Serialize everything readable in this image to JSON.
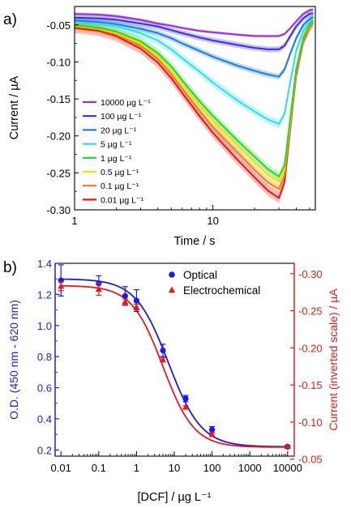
{
  "panels": {
    "a": {
      "letter": "a)"
    },
    "b": {
      "letter": "b)"
    }
  },
  "chart_data": [
    {
      "type": "line",
      "xlabel": "Time / s",
      "ylabel": "Current / µA",
      "xscale": "log",
      "xlim": [
        1,
        55
      ],
      "ylim": [
        -0.3,
        -0.025
      ],
      "xticks": [
        {
          "value": 1,
          "label": "1"
        },
        {
          "value": 10,
          "label": "10"
        }
      ],
      "yticks": [
        {
          "value": -0.05,
          "label": "-0.05"
        },
        {
          "value": -0.1,
          "label": "-0.10"
        },
        {
          "value": -0.15,
          "label": "-0.15"
        },
        {
          "value": -0.2,
          "label": "-0.20"
        },
        {
          "value": -0.25,
          "label": "-0.25"
        },
        {
          "value": -0.3,
          "label": "-0.30"
        }
      ],
      "legend_position": "bottom-left",
      "x": [
        1,
        1.5,
        2,
        3,
        4,
        5,
        6,
        8,
        10,
        15,
        20,
        25,
        30,
        33,
        36,
        40,
        45,
        50,
        53
      ],
      "series": [
        {
          "name": "10000 µg L⁻¹",
          "color": "#9b30d9",
          "band": 0.002,
          "values": [
            -0.035,
            -0.036,
            -0.038,
            -0.043,
            -0.048,
            -0.051,
            -0.054,
            -0.058,
            -0.06,
            -0.063,
            -0.065,
            -0.065,
            -0.065,
            -0.062,
            -0.055,
            -0.045,
            -0.035,
            -0.03,
            -0.029
          ]
        },
        {
          "name": "100 µg L⁻¹",
          "color": "#3a2ee0",
          "band": 0.004,
          "values": [
            -0.04,
            -0.041,
            -0.043,
            -0.048,
            -0.052,
            -0.057,
            -0.061,
            -0.067,
            -0.071,
            -0.077,
            -0.081,
            -0.083,
            -0.083,
            -0.078,
            -0.066,
            -0.052,
            -0.041,
            -0.035,
            -0.034
          ]
        },
        {
          "name": "20 µg L⁻¹",
          "color": "#1a7ee0",
          "band": 0.004,
          "values": [
            -0.044,
            -0.046,
            -0.049,
            -0.055,
            -0.061,
            -0.068,
            -0.075,
            -0.085,
            -0.093,
            -0.105,
            -0.112,
            -0.117,
            -0.12,
            -0.11,
            -0.09,
            -0.068,
            -0.05,
            -0.042,
            -0.039
          ]
        },
        {
          "name": "5 µg L⁻¹",
          "color": "#35dbe6",
          "band": 0.006,
          "values": [
            -0.046,
            -0.049,
            -0.052,
            -0.061,
            -0.071,
            -0.083,
            -0.095,
            -0.113,
            -0.128,
            -0.152,
            -0.167,
            -0.178,
            -0.184,
            -0.17,
            -0.13,
            -0.085,
            -0.058,
            -0.046,
            -0.041
          ]
        },
        {
          "name": "1 µg L⁻¹",
          "color": "#28d428",
          "band": 0.006,
          "values": [
            -0.05,
            -0.054,
            -0.059,
            -0.072,
            -0.088,
            -0.106,
            -0.125,
            -0.153,
            -0.173,
            -0.206,
            -0.228,
            -0.245,
            -0.255,
            -0.24,
            -0.18,
            -0.11,
            -0.068,
            -0.05,
            -0.044
          ]
        },
        {
          "name": "0.5 µg L⁻¹",
          "color": "#eee014",
          "band": 0.006,
          "values": [
            -0.051,
            -0.055,
            -0.061,
            -0.075,
            -0.092,
            -0.111,
            -0.13,
            -0.159,
            -0.18,
            -0.213,
            -0.236,
            -0.253,
            -0.262,
            -0.245,
            -0.185,
            -0.112,
            -0.069,
            -0.051,
            -0.045
          ]
        },
        {
          "name": "0.1 µg L⁻¹",
          "color": "#f07c1c",
          "band": 0.006,
          "values": [
            -0.052,
            -0.056,
            -0.063,
            -0.078,
            -0.096,
            -0.116,
            -0.136,
            -0.166,
            -0.188,
            -0.222,
            -0.246,
            -0.263,
            -0.272,
            -0.253,
            -0.19,
            -0.115,
            -0.07,
            -0.052,
            -0.045
          ]
        },
        {
          "name": "0.01 µg L⁻¹",
          "color": "#e81616",
          "band": 0.007,
          "values": [
            -0.054,
            -0.058,
            -0.065,
            -0.082,
            -0.101,
            -0.122,
            -0.142,
            -0.173,
            -0.196,
            -0.232,
            -0.256,
            -0.274,
            -0.284,
            -0.262,
            -0.195,
            -0.118,
            -0.072,
            -0.053,
            -0.046
          ]
        }
      ]
    },
    {
      "type": "scatter",
      "xlabel": "[DCF] / µg L⁻¹",
      "ylabel": "O.D. (450 nm - 620 nm)",
      "y2label": "Current (inverted scale) / µA",
      "xscale": "log",
      "xlim": [
        0.007,
        15000
      ],
      "ylim": [
        0.16,
        1.4
      ],
      "y2lim": [
        -0.054,
        -0.314
      ],
      "xticks": [
        {
          "value": 0.01,
          "label": "0.01"
        },
        {
          "value": 0.1,
          "label": "0.1"
        },
        {
          "value": 1,
          "label": "1"
        },
        {
          "value": 10,
          "label": "10"
        },
        {
          "value": 100,
          "label": "100"
        },
        {
          "value": 1000,
          "label": "1000"
        },
        {
          "value": 10000,
          "label": "10000"
        }
      ],
      "yticks": [
        {
          "value": 0.2,
          "label": "0.2"
        },
        {
          "value": 0.4,
          "label": "0.4"
        },
        {
          "value": 0.6,
          "label": "0.6"
        },
        {
          "value": 0.8,
          "label": "0.8"
        },
        {
          "value": 1.0,
          "label": "1.0"
        },
        {
          "value": 1.2,
          "label": "1.2"
        },
        {
          "value": 1.4,
          "label": "1.4"
        }
      ],
      "y2ticks": [
        {
          "value": -0.05,
          "label": "-0.05"
        },
        {
          "value": -0.1,
          "label": "-0.10"
        },
        {
          "value": -0.15,
          "label": "-0.15"
        },
        {
          "value": -0.2,
          "label": "-0.20"
        },
        {
          "value": -0.25,
          "label": "-0.25"
        },
        {
          "value": -0.3,
          "label": "-0.30"
        }
      ],
      "legend_position": "top-right",
      "axis_colors": {
        "left": "#1a1ae6",
        "right": "#e61a1a"
      },
      "series": [
        {
          "name": "Optical",
          "axis": "left",
          "marker": "circle",
          "color": "#1a1ae6",
          "points": [
            {
              "x": 0.01,
              "y": 1.29,
              "err": 0.1
            },
            {
              "x": 0.1,
              "y": 1.27,
              "err": 0.05
            },
            {
              "x": 0.5,
              "y": 1.19,
              "err": 0.06
            },
            {
              "x": 1,
              "y": 1.16,
              "err": 0.07
            },
            {
              "x": 5,
              "y": 0.84,
              "err": 0.04
            },
            {
              "x": 20,
              "y": 0.53,
              "err": 0.02
            },
            {
              "x": 100,
              "y": 0.33,
              "err": 0.02
            },
            {
              "x": 10000,
              "y": 0.22,
              "err": 0.01
            }
          ],
          "fit": {
            "top": 1.3,
            "bottom": 0.22,
            "ec50": 7,
            "hill": 1.0
          }
        },
        {
          "name": "Electrochemical",
          "axis": "right",
          "marker": "triangle",
          "color": "#e61a1a",
          "points": [
            {
              "x": 0.01,
              "y": -0.283,
              "err": 0.006
            },
            {
              "x": 0.1,
              "y": -0.279,
              "err": 0.008
            },
            {
              "x": 0.5,
              "y": -0.262,
              "err": 0.004
            },
            {
              "x": 1,
              "y": -0.255,
              "err": 0.004
            },
            {
              "x": 5,
              "y": -0.184,
              "err": 0.003
            },
            {
              "x": 20,
              "y": -0.12,
              "err": 0.002
            },
            {
              "x": 100,
              "y": -0.083,
              "err": 0.002
            },
            {
              "x": 10000,
              "y": -0.067,
              "err": 0.002
            }
          ],
          "fit": {
            "top": -0.284,
            "bottom": -0.066,
            "ec50": 5,
            "hill": 1.05
          }
        }
      ]
    }
  ]
}
